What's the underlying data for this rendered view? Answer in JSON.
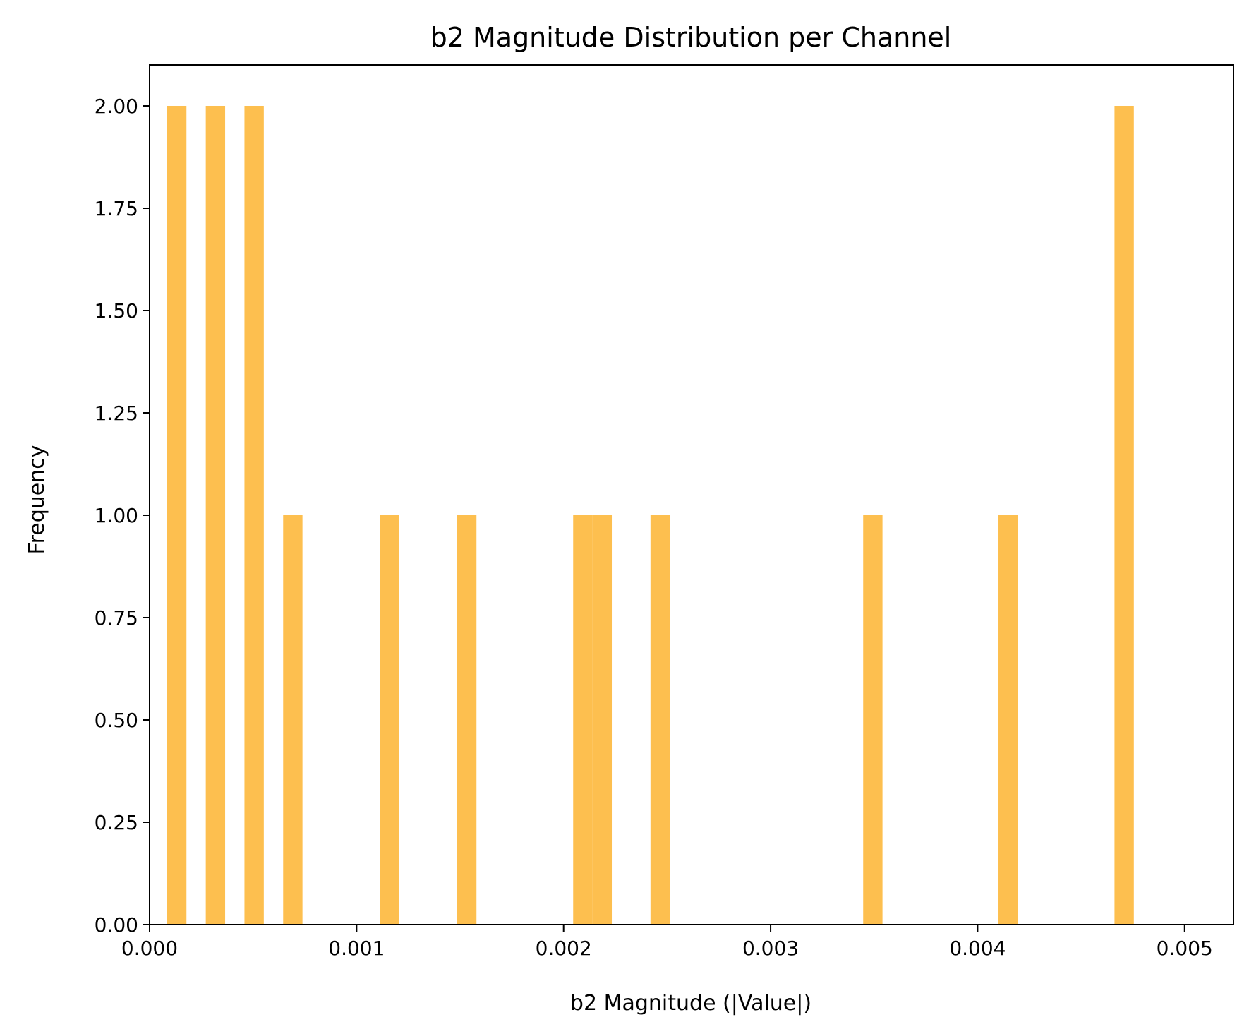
{
  "chart_data": {
    "type": "bar",
    "subtype": "histogram",
    "title": "b2 Magnitude Distribution per Channel",
    "xlabel": "b2 Magnitude (|Value|)",
    "ylabel": "Frequency",
    "xlim": [
      0,
      0.005236
    ],
    "ylim": [
      0,
      2.1
    ],
    "xticks": [
      "0.000",
      "0.001",
      "0.002",
      "0.003",
      "0.004",
      "0.005"
    ],
    "yticks": [
      "0.00",
      "0.25",
      "0.50",
      "0.75",
      "1.00",
      "1.25",
      "1.50",
      "1.75",
      "2.00"
    ],
    "bar_color": "#fdbf4f",
    "grid": false,
    "bin_width": 9.34e-05,
    "bins": [
      {
        "x0": 8.47e-05,
        "count": 2
      },
      {
        "x0": 0.0002715,
        "count": 2
      },
      {
        "x0": 0.0004583,
        "count": 2
      },
      {
        "x0": 0.0006451,
        "count": 1
      },
      {
        "x0": 0.0011121,
        "count": 1
      },
      {
        "x0": 0.0014857,
        "count": 1
      },
      {
        "x0": 0.0020461,
        "count": 1
      },
      {
        "x0": 0.0021395,
        "count": 1
      },
      {
        "x0": 0.0024197,
        "count": 1
      },
      {
        "x0": 0.0034471,
        "count": 1
      },
      {
        "x0": 0.0041009,
        "count": 1
      },
      {
        "x0": 0.0046613,
        "count": 2
      }
    ]
  }
}
